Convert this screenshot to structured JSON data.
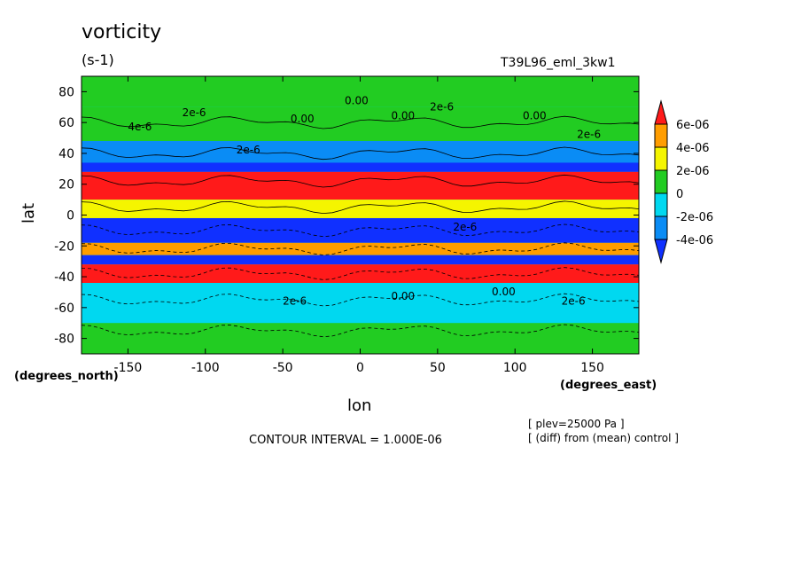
{
  "chart_data": {
    "type": "heatmap",
    "title": "vorticity",
    "units": "(s-1)",
    "run_id": "T39L96_eml_3kw1",
    "xlabel": "lon",
    "ylabel": "lat",
    "x_units": "(degrees_east)",
    "y_units": "(degrees_north)",
    "xlim": [
      -180,
      180
    ],
    "ylim": [
      -90,
      90
    ],
    "x_ticks": [
      "-150",
      "-100",
      "-50",
      "0",
      "50",
      "100",
      "150"
    ],
    "x_tick_values": [
      -150,
      -100,
      -50,
      0,
      50,
      100,
      150
    ],
    "y_ticks": [
      "80",
      "60",
      "40",
      "20",
      "0",
      "-20",
      "-40",
      "-60",
      "-80"
    ],
    "y_tick_values": [
      80,
      60,
      40,
      20,
      0,
      -20,
      -40,
      -60,
      -80
    ],
    "colorbar": {
      "levels": [
        "6e-06",
        "4e-06",
        "2e-06",
        "0",
        "-2e-06",
        "-4e-06"
      ],
      "colors": [
        "#ff1a1a",
        "#ff9d00",
        "#f5f500",
        "#22cc22",
        "#00d8f0",
        "#0a8cf5",
        "#1030ff"
      ]
    },
    "contour_interval": "CONTOUR INTERVAL = 1.000E-06",
    "annotations": [
      "[ plev=25000 Pa ]",
      "[ (diff) from (mean) control ]"
    ],
    "contour_labels": [
      "0.00",
      "2e-6",
      "4e-6",
      "2e-6",
      "0.00",
      "0.00",
      "2e-6",
      "0.00",
      "2e-6",
      "2e-6",
      "0.00",
      "0.00",
      "2e-6",
      "2e-6"
    ],
    "bands": [
      {
        "lat_min": 70,
        "lat_max": 90,
        "value": 1e-06
      },
      {
        "lat_min": 48,
        "lat_max": 70,
        "value": 0
      },
      {
        "lat_min": 34,
        "lat_max": 48,
        "value": -3e-06
      },
      {
        "lat_min": 28,
        "lat_max": 34,
        "value": -7e-06
      },
      {
        "lat_min": 10,
        "lat_max": 28,
        "value": 7e-06
      },
      {
        "lat_min": -2,
        "lat_max": 10,
        "value": 3e-06
      },
      {
        "lat_min": -18,
        "lat_max": -2,
        "value": -5e-06
      },
      {
        "lat_min": -26,
        "lat_max": -18,
        "value": 5e-06
      },
      {
        "lat_min": -32,
        "lat_max": -26,
        "value": -7e-06
      },
      {
        "lat_min": -44,
        "lat_max": -32,
        "value": 7e-06
      },
      {
        "lat_min": -70,
        "lat_max": -44,
        "value": -1e-06
      },
      {
        "lat_min": -90,
        "lat_max": -70,
        "value": 1e-06
      }
    ]
  }
}
